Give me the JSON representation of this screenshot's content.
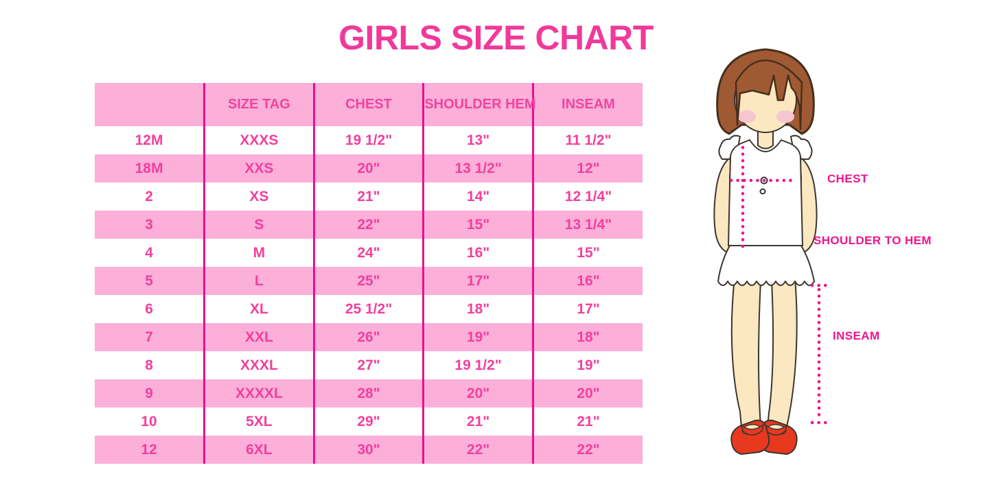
{
  "title": "GIRLS SIZE CHART",
  "chart_data": {
    "type": "table",
    "title": "GIRLS SIZE CHART",
    "columns": [
      "",
      "SIZE TAG",
      "CHEST",
      "SHOULDER HEM",
      "INSEAM"
    ],
    "rows": [
      [
        "12M",
        "XXXS",
        "19 1/2\"",
        "13\"",
        "11 1/2\""
      ],
      [
        "18M",
        "XXS",
        "20\"",
        "13 1/2\"",
        "12\""
      ],
      [
        "2",
        "XS",
        "21\"",
        "14\"",
        "12 1/4\""
      ],
      [
        "3",
        "S",
        "22\"",
        "15\"",
        "13 1/4\""
      ],
      [
        "4",
        "M",
        "24\"",
        "16\"",
        "15\""
      ],
      [
        "5",
        "L",
        "25\"",
        "17\"",
        "16\""
      ],
      [
        "6",
        "XL",
        "25 1/2\"",
        "18\"",
        "17\""
      ],
      [
        "7",
        "XXL",
        "26\"",
        "19\"",
        "18\""
      ],
      [
        "8",
        "XXXL",
        "27\"",
        "19 1/2\"",
        "19\""
      ],
      [
        "9",
        "XXXXL",
        "28\"",
        "20\"",
        "20\""
      ],
      [
        "10",
        "5XL",
        "29\"",
        "21\"",
        "21\""
      ],
      [
        "12",
        "6XL",
        "30\"",
        "22\"",
        "22\""
      ]
    ]
  },
  "figure": {
    "chest_label": "CHEST",
    "shoulder_to_hem_label": "SHOULDER TO HEM",
    "inseam_label": "INSEAM"
  },
  "colors": {
    "title_pink": "#F0399B",
    "row_pink": "#FBAFD9",
    "divider_magenta": "#E9108E",
    "text_pink": "#F23F9E",
    "label_magenta": "#F0138F"
  }
}
